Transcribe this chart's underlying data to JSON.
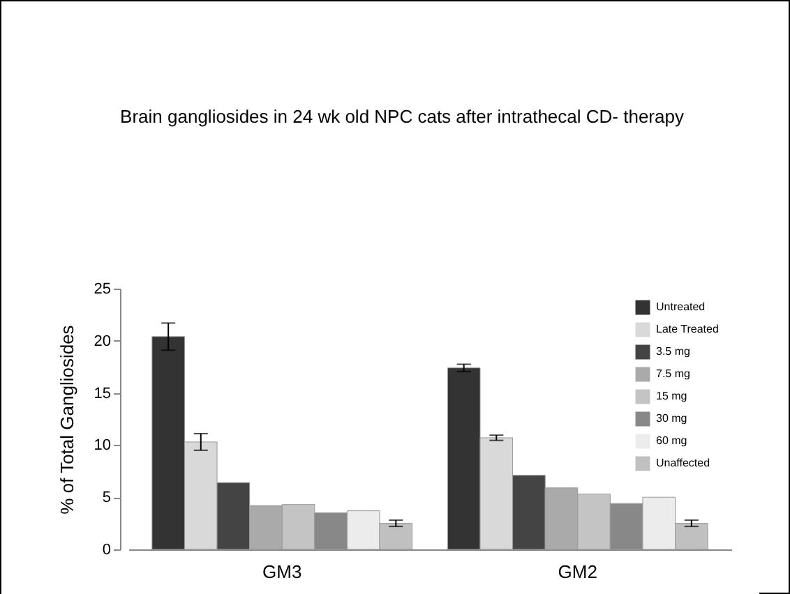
{
  "chart_data": {
    "type": "bar",
    "title": "Brain gangliosides in 24 wk old NPC cats after intrathecal CD- therapy",
    "ylabel": "% of Total Gangliosides",
    "categories": [
      "GM3",
      "GM2"
    ],
    "series": [
      {
        "name": "Untreated",
        "color": "#333333",
        "values": [
          20.4,
          17.4
        ],
        "errors": [
          1.3,
          0.35
        ]
      },
      {
        "name": "Late Treated",
        "color": "#d9d9d9",
        "values": [
          10.3,
          10.7
        ],
        "errors": [
          0.8,
          0.25
        ]
      },
      {
        "name": "3.5 mg",
        "color": "#444444",
        "values": [
          6.4,
          7.1
        ]
      },
      {
        "name": "7.5 mg",
        "color": "#aaaaaa",
        "values": [
          4.2,
          5.9
        ]
      },
      {
        "name": "15 mg",
        "color": "#c4c4c4",
        "values": [
          4.3,
          5.3
        ]
      },
      {
        "name": "30 mg",
        "color": "#888888",
        "values": [
          3.5,
          4.4
        ]
      },
      {
        "name": "60 mg",
        "color": "#ececec",
        "values": [
          3.7,
          5.0
        ]
      },
      {
        "name": "Unaffected",
        "color": "#c0c0c0",
        "values": [
          2.5,
          2.5
        ],
        "errors": [
          0.3,
          0.3
        ]
      }
    ],
    "ylim": [
      0,
      25
    ],
    "yticks": [
      0,
      5,
      10,
      15,
      20,
      25
    ],
    "grid": false,
    "legend": "top right"
  }
}
